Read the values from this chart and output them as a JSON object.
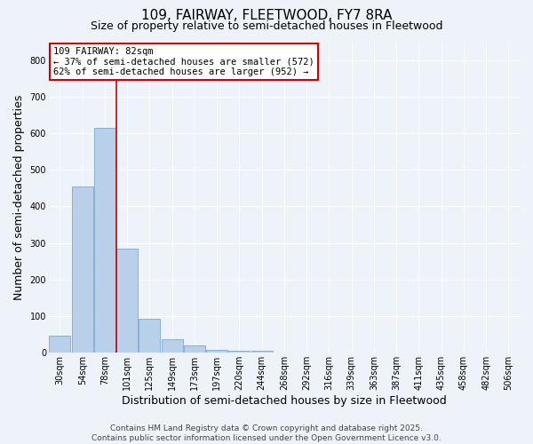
{
  "title": "109, FAIRWAY, FLEETWOOD, FY7 8RA",
  "subtitle": "Size of property relative to semi-detached houses in Fleetwood",
  "xlabel": "Distribution of semi-detached houses by size in Fleetwood",
  "ylabel": "Number of semi-detached properties",
  "categories": [
    "30sqm",
    "54sqm",
    "78sqm",
    "101sqm",
    "125sqm",
    "149sqm",
    "173sqm",
    "197sqm",
    "220sqm",
    "244sqm",
    "268sqm",
    "292sqm",
    "316sqm",
    "339sqm",
    "363sqm",
    "387sqm",
    "411sqm",
    "435sqm",
    "458sqm",
    "482sqm",
    "506sqm"
  ],
  "values": [
    45,
    455,
    615,
    285,
    93,
    35,
    18,
    8,
    5,
    5,
    0,
    0,
    0,
    0,
    0,
    0,
    0,
    0,
    0,
    0,
    0
  ],
  "bar_color": "#b8d0ea",
  "bar_edge_color": "#7aaad0",
  "vline_index": 2.5,
  "vline_color": "#cc0000",
  "annotation_title": "109 FAIRWAY: 82sqm",
  "annotation_line1": "← 37% of semi-detached houses are smaller (572)",
  "annotation_line2": "62% of semi-detached houses are larger (952) →",
  "annotation_box_color": "#ffffff",
  "annotation_box_edge": "#cc0000",
  "ylim": [
    0,
    850
  ],
  "yticks": [
    0,
    100,
    200,
    300,
    400,
    500,
    600,
    700,
    800
  ],
  "footer1": "Contains HM Land Registry data © Crown copyright and database right 2025.",
  "footer2": "Contains public sector information licensed under the Open Government Licence v3.0.",
  "bg_color": "#eef2f9",
  "plot_bg_color": "#eef2f9",
  "grid_color": "#ffffff",
  "title_fontsize": 11,
  "subtitle_fontsize": 9,
  "axis_label_fontsize": 9,
  "tick_fontsize": 7,
  "annotation_fontsize": 7.5,
  "footer_fontsize": 6.5
}
